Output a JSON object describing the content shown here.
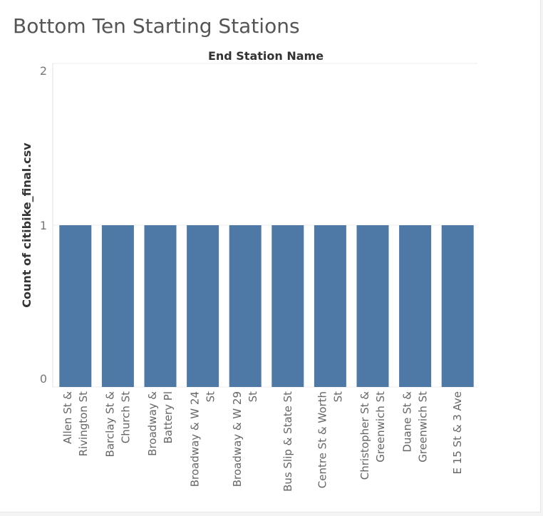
{
  "page": {
    "title": "Bottom Ten Starting Stations"
  },
  "chart_data": {
    "type": "bar",
    "title": "Bottom Ten Starting Stations",
    "column_header": "End Station Name",
    "xlabel": "",
    "ylabel": "Count of citibike_final.csv",
    "ylim": [
      0,
      2
    ],
    "yticks": [
      "0",
      "1",
      "2"
    ],
    "grid": true,
    "bar_color": "#4e79a7",
    "categories": [
      [
        "Allen St &",
        "Rivington St"
      ],
      [
        "Barclay St &",
        "Church St"
      ],
      [
        "Broadway &",
        "Battery Pl"
      ],
      [
        "Broadway & W 24",
        "St"
      ],
      [
        "Broadway & W 29",
        "St"
      ],
      [
        "Bus Slip & State St"
      ],
      [
        "Centre St & Worth",
        "St"
      ],
      [
        "Christopher St &",
        "Greenwich St"
      ],
      [
        "Duane St &",
        "Greenwich St"
      ],
      [
        "E 15 St & 3 Ave"
      ]
    ],
    "values": [
      1,
      1,
      1,
      1,
      1,
      1,
      1,
      1,
      1,
      1
    ]
  }
}
